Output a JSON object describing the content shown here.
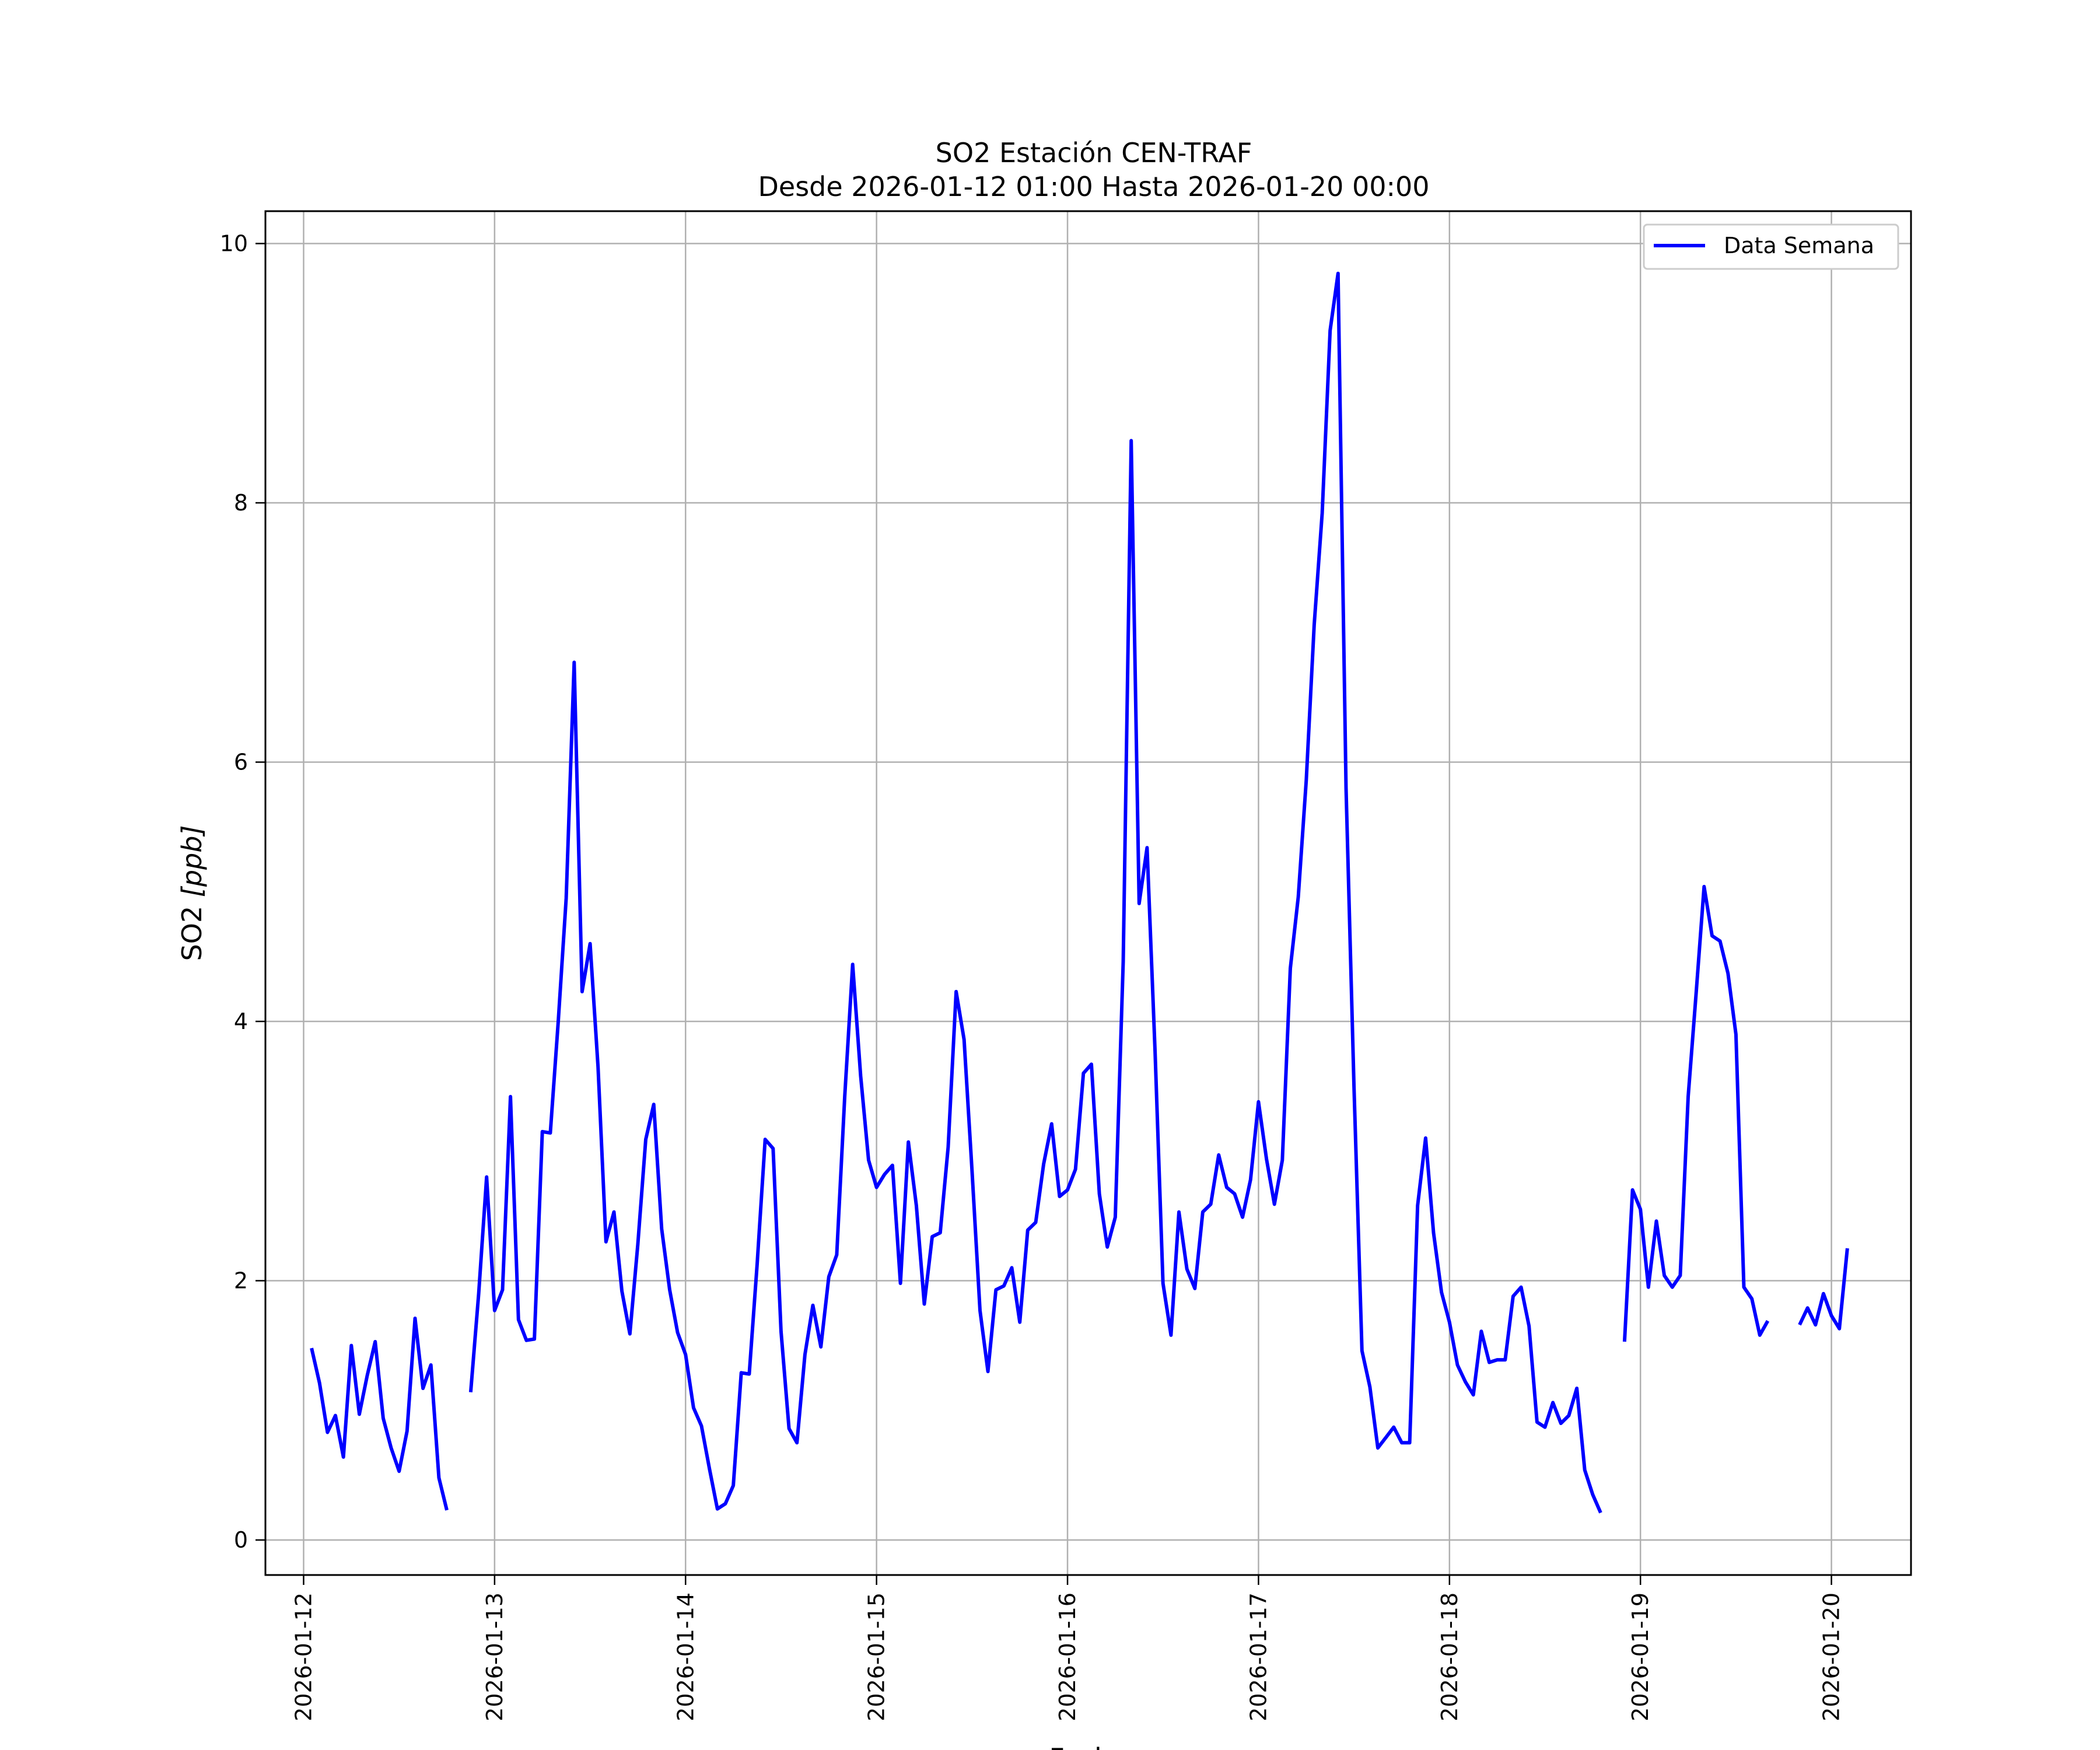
{
  "chart_data": {
    "type": "line",
    "title": "SO2 Estación CEN-TRAF",
    "subtitle": "Desde 2026-01-12 01:00 Hasta 2026-01-20 00:00",
    "xlabel": "Fecha",
    "ylabel_main": "SO2 ",
    "ylabel_unit": "[ppb]",
    "x_ticks": [
      "2026-01-12",
      "2026-01-13",
      "2026-01-14",
      "2026-01-15",
      "2026-01-16",
      "2026-01-17",
      "2026-01-18",
      "2026-01-19",
      "2026-01-20"
    ],
    "y_ticks": [
      "0",
      "2",
      "4",
      "6",
      "8",
      "10"
    ],
    "xlim": [
      "2026-01-11 19:12",
      "2026-01-20 10:00"
    ],
    "ylim": [
      -0.27,
      10.25
    ],
    "grid": true,
    "legend_position": "upper-right",
    "line_color": "#0000ff",
    "series": [
      {
        "name": "Data Semana",
        "start": "2026-01-12 01:00",
        "step_hours": 1,
        "values": [
          1.48,
          1.21,
          0.83,
          0.96,
          0.64,
          1.5,
          0.97,
          1.27,
          1.53,
          0.94,
          0.71,
          0.53,
          0.84,
          1.71,
          1.17,
          1.35,
          0.48,
          0.23,
          null,
          null,
          1.14,
          1.9,
          2.8,
          1.77,
          1.93,
          3.42,
          1.7,
          1.54,
          1.55,
          3.15,
          3.14,
          4.0,
          4.95,
          6.77,
          4.23,
          4.6,
          3.65,
          2.3,
          2.53,
          1.92,
          1.59,
          2.28,
          3.09,
          3.36,
          2.4,
          1.93,
          1.6,
          1.43,
          1.02,
          0.88,
          0.55,
          0.24,
          0.28,
          0.42,
          1.29,
          1.28,
          2.13,
          3.09,
          3.02,
          1.61,
          0.86,
          0.75,
          1.43,
          1.81,
          1.49,
          2.03,
          2.2,
          3.42,
          4.44,
          3.58,
          2.93,
          2.72,
          2.82,
          2.89,
          1.98,
          3.07,
          2.58,
          1.82,
          2.34,
          2.37,
          3.03,
          4.23,
          3.86,
          2.85,
          1.77,
          1.3,
          1.93,
          1.96,
          2.1,
          1.68,
          2.39,
          2.45,
          2.9,
          3.21,
          2.65,
          2.7,
          2.86,
          3.6,
          3.67,
          2.67,
          2.26,
          2.49,
          4.46,
          8.48,
          4.91,
          5.34,
          3.77,
          1.98,
          1.58,
          2.53,
          2.09,
          1.94,
          2.53,
          2.59,
          2.97,
          2.72,
          2.67,
          2.49,
          2.78,
          3.38,
          2.94,
          2.59,
          2.93,
          4.41,
          4.96,
          5.86,
          7.06,
          7.92,
          9.33,
          9.77,
          5.8,
          3.5,
          1.46,
          1.18,
          0.71,
          0.79,
          0.87,
          0.75,
          0.75,
          2.58,
          3.1,
          2.37,
          1.91,
          1.68,
          1.35,
          1.22,
          1.12,
          1.61,
          1.37,
          1.39,
          1.39,
          1.88,
          1.95,
          1.65,
          0.91,
          0.87,
          1.06,
          0.9,
          0.96,
          1.17,
          0.54,
          0.35,
          0.21,
          null,
          null,
          1.53,
          2.7,
          2.55,
          1.95,
          2.46,
          2.04,
          1.95,
          2.04,
          3.42,
          4.22,
          5.04,
          4.66,
          4.62,
          4.37,
          3.9,
          1.95,
          1.86,
          1.58,
          1.69,
          null,
          null,
          null,
          1.66,
          1.79,
          1.66,
          1.9,
          1.73,
          1.63,
          2.25
        ]
      }
    ]
  }
}
